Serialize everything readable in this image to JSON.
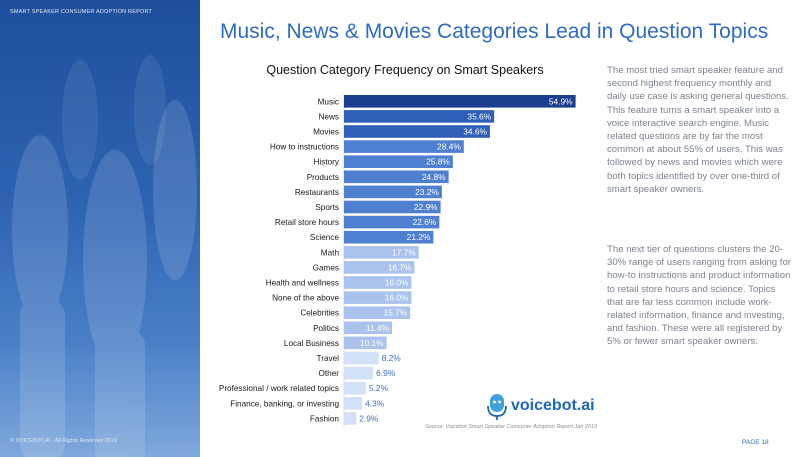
{
  "header": {
    "report_label": "SMART SPEAKER CONSUMER ADOPTION REPORT",
    "title": "Music, News & Movies Categories Lead in Question Topics"
  },
  "body": {
    "paragraph1": "The most tried smart speaker feature and second highest frequency monthly and daily use case is asking general questions. This feature turns a smart speaker into a voice interactive search engine. Music related questions are by far the most common at about 55% of users. This was followed by news and movies which were both topics identified by over one-third of smart speaker owners.",
    "paragraph2": "The next tier of questions clusters the 20-30% range of users ranging from asking for how-to instructions and product information to retail store hours and science. Topics that are far less common include work-related information, finance and investing, and fashion. These were all registered by 5% or fewer smart speaker owners."
  },
  "footer": {
    "copyright": "© VOICEBOT.AI - All Rights Reserved 2019",
    "source": "Source: Voicebot Smart Speaker Consumer Adoption Report Jan 2019",
    "logo_text": "voicebot.ai",
    "page": "PAGE 18"
  },
  "chart_data": {
    "type": "bar",
    "orientation": "horizontal",
    "title": "Question Category Frequency on Smart Speakers",
    "categories": [
      "Music",
      "News",
      "Movies",
      "How to instructions",
      "History",
      "Products",
      "Restaurants",
      "Sports",
      "Retail store hours",
      "Science",
      "Math",
      "Games",
      "Health and wellness",
      "None of the above",
      "Celebrities",
      "Politics",
      "Local Business",
      "Travel",
      "Other",
      "Professional / work related topics",
      "Finance, banking, or investing",
      "Fashion"
    ],
    "values": [
      54.9,
      35.6,
      34.6,
      28.4,
      25.8,
      24.8,
      23.2,
      22.9,
      22.6,
      21.2,
      17.7,
      16.7,
      16.0,
      16.0,
      15.7,
      11.4,
      10.1,
      8.2,
      6.9,
      5.2,
      4.3,
      2.9
    ],
    "data_labels": [
      "54.9%",
      "35.6%",
      "34.6%",
      "28.4%",
      "25.8%",
      "24.8%",
      "23.2%",
      "22.9%",
      "22.6%",
      "21.2%",
      "17.7%",
      "16.7%",
      "16.0%",
      "16.0%",
      "15.7%",
      "11.4%",
      "10.1%",
      "8.2%",
      "6.9%",
      "5.2%",
      "4.3%",
      "2.9%"
    ],
    "value_unit": "%",
    "xlim": [
      0,
      55
    ],
    "grid": false,
    "legend": "none",
    "colors": {
      "music": "#1b3f8e",
      "news_movies": "#2f5fb6",
      "mid": "#4f7fd0",
      "low": "#a9c3ed",
      "lowest": "#d2e1f7"
    }
  }
}
